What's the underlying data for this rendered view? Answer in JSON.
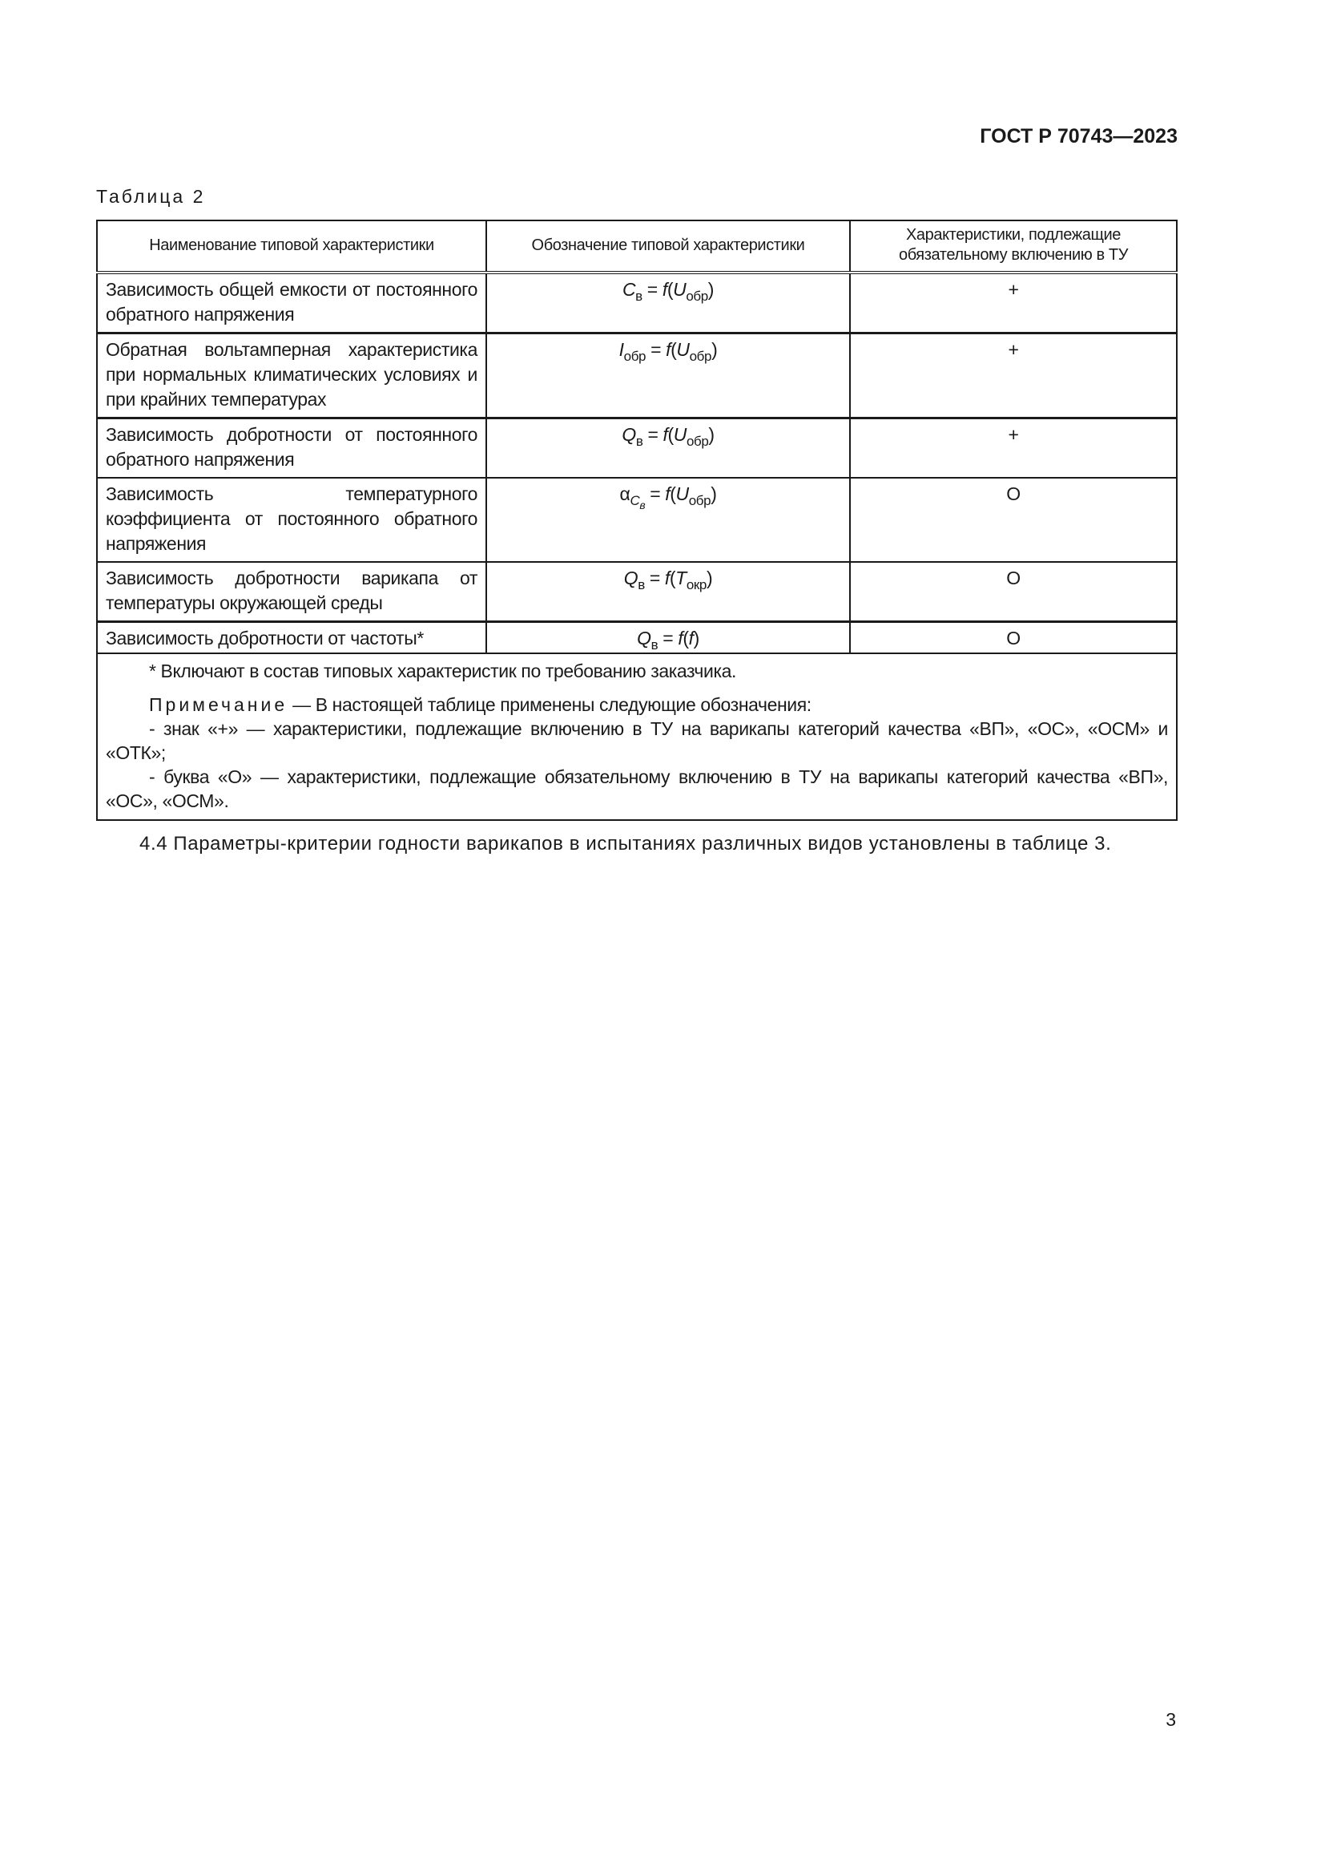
{
  "header": {
    "doc_id": "ГОСТ Р 70743—2023"
  },
  "table": {
    "caption": "Таблица 2",
    "columns": [
      "Наименование типовой характеристики",
      "Обозначение типовой характеристики",
      "Характеристики, подлежащие обязательному включению в ТУ"
    ],
    "rows": [
      {
        "name": "Зависимость общей емкости от постоянного обратного напряжения",
        "formula": [
          {
            "t": "C",
            "s": "i"
          },
          {
            "t": "в",
            "s": "sub"
          },
          {
            "t": " = ",
            "s": "n"
          },
          {
            "t": "f",
            "s": "i"
          },
          {
            "t": "(",
            "s": "n"
          },
          {
            "t": "U",
            "s": "i"
          },
          {
            "t": "обр",
            "s": "sub"
          },
          {
            "t": ")",
            "s": "n"
          }
        ],
        "mark": "+"
      },
      {
        "name": "Обратная вольтамперная характеристика при нормальных климатических условиях и при крайних температурах",
        "formula": [
          {
            "t": "I",
            "s": "i"
          },
          {
            "t": "обр",
            "s": "sub"
          },
          {
            "t": " = ",
            "s": "n"
          },
          {
            "t": "f",
            "s": "i"
          },
          {
            "t": "(",
            "s": "n"
          },
          {
            "t": "U",
            "s": "i"
          },
          {
            "t": "обр",
            "s": "sub"
          },
          {
            "t": ")",
            "s": "n"
          }
        ],
        "mark": "+"
      },
      {
        "name": "Зависимость добротности от постоянного обратного напряжения",
        "formula": [
          {
            "t": "Q",
            "s": "i"
          },
          {
            "t": "в",
            "s": "sub"
          },
          {
            "t": " = ",
            "s": "n"
          },
          {
            "t": "f",
            "s": "i"
          },
          {
            "t": "(",
            "s": "n"
          },
          {
            "t": "U",
            "s": "i"
          },
          {
            "t": "обр",
            "s": "sub"
          },
          {
            "t": ")",
            "s": "n"
          }
        ],
        "mark": "+"
      },
      {
        "name": "Зависимость температурного коэффициента от постоянного обратного напряжения",
        "formula": [
          {
            "t": "α",
            "s": "n"
          },
          {
            "t": "C",
            "s": "subi"
          },
          {
            "t": "в",
            "s": "subsub"
          },
          {
            "t": " = ",
            "s": "n"
          },
          {
            "t": "f",
            "s": "i"
          },
          {
            "t": "(",
            "s": "n"
          },
          {
            "t": "U",
            "s": "i"
          },
          {
            "t": "обр",
            "s": "sub"
          },
          {
            "t": ")",
            "s": "n"
          }
        ],
        "mark": "О"
      },
      {
        "name": "Зависимость добротности варикапа от температуры окружающей среды",
        "formula": [
          {
            "t": "Q",
            "s": "i"
          },
          {
            "t": "в",
            "s": "sub"
          },
          {
            "t": " = ",
            "s": "n"
          },
          {
            "t": "f",
            "s": "i"
          },
          {
            "t": "(",
            "s": "n"
          },
          {
            "t": "T",
            "s": "i"
          },
          {
            "t": "окр",
            "s": "sub"
          },
          {
            "t": ")",
            "s": "n"
          }
        ],
        "mark": "О"
      },
      {
        "name": "Зависимость добротности от частоты*",
        "formula": [
          {
            "t": "Q",
            "s": "i"
          },
          {
            "t": "в",
            "s": "sub"
          },
          {
            "t": " = ",
            "s": "n"
          },
          {
            "t": "f",
            "s": "i"
          },
          {
            "t": "(",
            "s": "n"
          },
          {
            "t": "f",
            "s": "i"
          },
          {
            "t": ")",
            "s": "n"
          }
        ],
        "mark": "О"
      }
    ],
    "footnote": "* Включают в состав типовых характеристик по требованию заказчика.",
    "note_label": "Примечание",
    "note_intro": " — В настоящей таблице применены следующие обозначения:",
    "note_items": [
      "- знак «+» — характеристики, подлежащие включению в ТУ на варикапы категорий качества «ВП», «ОС», «ОСМ» и «ОТК»;",
      "- буква «О» — характеристики, подлежащие обязательному включению в ТУ на варикапы категорий качества «ВП», «ОС», «ОСМ»."
    ]
  },
  "paragraph": "4.4 Параметры-критерии годности варикапов в испытаниях различных видов установлены в таблице 3.",
  "page_number": "3"
}
